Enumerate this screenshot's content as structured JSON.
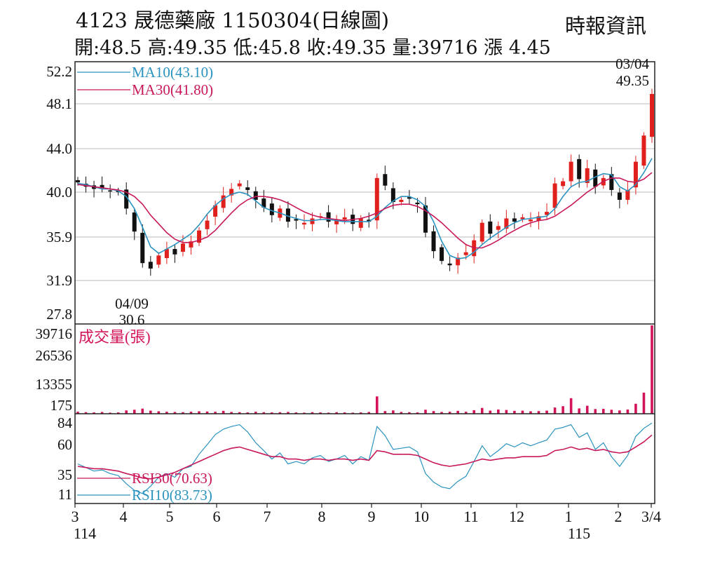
{
  "header": {
    "title": "4123  晟德藥廠 1150304(日線圖)",
    "source": "時報資訊",
    "quote": "開:48.5 高:49.35 低:45.8 收:49.35 量:39716 漲 4.45"
  },
  "colors": {
    "up": "#e0201c",
    "down": "#111111",
    "ma10": "#2a93c0",
    "ma30": "#c8185a",
    "volume": "#d4145a",
    "rsi30": "#c8185a",
    "rsi10": "#2a93c0",
    "grid": "#bbbbbb",
    "frame": "#222222"
  },
  "chart_data": [
    {
      "type": "candlestick",
      "panel": "price",
      "y_ticks": [
        "52.2",
        "48.1",
        "44.0",
        "40.0",
        "35.9",
        "31.9",
        "27.8"
      ],
      "ylim": [
        27.8,
        52.2
      ],
      "grid": true,
      "x_ticks": [
        "3",
        "4",
        "5",
        "6",
        "7",
        "8",
        "9",
        "10",
        "11",
        "12",
        "1",
        "2",
        "3/4"
      ],
      "x_year_labels": [
        "114",
        "115"
      ],
      "series": [
        {
          "name": "MA10(43.10)",
          "values": [
            40.8,
            40.7,
            40.5,
            40.3,
            40.3,
            40.1,
            39.6,
            38.5,
            36.8,
            35.0,
            34.4,
            34.8,
            35.2,
            35.7,
            36.2,
            37.0,
            38.0,
            38.8,
            39.4,
            39.8,
            40.0,
            39.8,
            39.2,
            38.6,
            38.3,
            38.1,
            37.8,
            37.6,
            37.4,
            37.4,
            37.5,
            37.5,
            37.4,
            37.3,
            37.3,
            37.3,
            37.3,
            37.8,
            38.6,
            39.2,
            39.6,
            39.6,
            39.3,
            38.7,
            37.3,
            35.5,
            34.2,
            33.9,
            34.0,
            34.5,
            35.2,
            35.8,
            36.3,
            36.8,
            37.2,
            37.5,
            37.6,
            37.7,
            37.8,
            38.5,
            39.6,
            40.5,
            40.9,
            41.0,
            41.4,
            41.7,
            41.6,
            40.5,
            40.1,
            40.7,
            41.8,
            43.1
          ]
        },
        {
          "name": "MA30(41.80)",
          "values": [
            40.7,
            40.6,
            40.5,
            40.4,
            40.3,
            40.2,
            40.0,
            39.6,
            38.9,
            37.9,
            37.1,
            36.3,
            35.7,
            35.4,
            35.4,
            35.6,
            35.9,
            36.5,
            37.3,
            38.1,
            38.8,
            39.3,
            39.6,
            39.6,
            39.5,
            39.3,
            39.0,
            38.6,
            38.2,
            37.9,
            37.7,
            37.6,
            37.5,
            37.4,
            37.5,
            37.6,
            37.8,
            38.1,
            38.5,
            38.8,
            38.9,
            38.9,
            38.7,
            38.3,
            37.8,
            37.2,
            36.5,
            35.8,
            35.2,
            34.9,
            34.9,
            35.2,
            35.6,
            36.1,
            36.5,
            36.9,
            37.2,
            37.4,
            37.5,
            37.8,
            38.3,
            38.8,
            39.4,
            40.0,
            40.5,
            41.0,
            41.3,
            41.3,
            41.0,
            40.9,
            41.2,
            41.8
          ]
        },
        {
          "name": "close",
          "values": [
            40.9,
            40.5,
            40.3,
            40.4,
            40.1,
            40.0,
            38.5,
            36.4,
            33.5,
            33.0,
            34.2,
            34.8,
            34.3,
            35.3,
            35.5,
            36.5,
            37.4,
            38.8,
            39.7,
            40.3,
            40.8,
            40.2,
            39.3,
            38.6,
            37.9,
            38.5,
            37.3,
            37.4,
            37.2,
            37.6,
            37.8,
            37.3,
            37.5,
            37.7,
            37.1,
            37.6,
            37.3,
            41.3,
            40.6,
            39.1,
            39.3,
            39.4,
            38.9,
            36.3,
            34.6,
            33.7,
            33.3,
            34.0,
            34.5,
            35.6,
            37.2,
            36.2,
            36.9,
            37.6,
            37.3,
            37.7,
            37.5,
            37.8,
            38.2,
            40.8,
            41.0,
            42.8,
            41.2,
            42.2,
            40.5,
            41.3,
            40.2,
            39.3,
            40.2,
            42.8,
            45.2,
            49.35
          ]
        }
      ]
    },
    {
      "type": "bar",
      "panel": "volume",
      "title": "成交量(張)",
      "y_ticks": [
        "39716",
        "26536",
        "13355",
        "175"
      ],
      "ylim": [
        0,
        39716
      ],
      "values": [
        900,
        700,
        600,
        800,
        500,
        600,
        1500,
        1800,
        2300,
        1400,
        1100,
        900,
        800,
        700,
        900,
        1100,
        1000,
        900,
        1300,
        800,
        700,
        600,
        900,
        700,
        600,
        700,
        800,
        600,
        500,
        700,
        600,
        500,
        700,
        600,
        500,
        600,
        800,
        7800,
        1200,
        1500,
        800,
        700,
        600,
        1800,
        1200,
        800,
        900,
        1300,
        900,
        1600,
        2600,
        1400,
        1900,
        1700,
        1300,
        1400,
        1100,
        1200,
        1400,
        2800,
        3400,
        7000,
        2400,
        3600,
        2100,
        2200,
        1800,
        1500,
        1900,
        4500,
        9500,
        39716
      ]
    },
    {
      "type": "line",
      "panel": "rsi",
      "y_ticks": [
        "84",
        "60",
        "35",
        "11"
      ],
      "ylim": [
        11,
        84
      ],
      "series": [
        {
          "name": "RSI30(70.63)",
          "values": [
            42,
            41,
            40,
            40,
            39,
            38,
            36,
            34,
            31,
            30,
            32,
            35,
            37,
            40,
            43,
            46,
            49,
            52,
            55,
            57,
            58,
            56,
            54,
            52,
            50,
            50,
            48,
            48,
            47,
            48,
            48,
            47,
            48,
            48,
            47,
            48,
            47,
            55,
            54,
            52,
            52,
            52,
            51,
            48,
            45,
            43,
            42,
            43,
            44,
            46,
            48,
            47,
            48,
            49,
            49,
            50,
            50,
            50,
            51,
            55,
            56,
            58,
            56,
            57,
            55,
            56,
            54,
            53,
            54,
            58,
            63,
            70.63
          ]
        },
        {
          "name": "RSI10(83.73)",
          "values": [
            44,
            41,
            38,
            39,
            36,
            34,
            24,
            16,
            12,
            21,
            32,
            36,
            32,
            40,
            42,
            52,
            60,
            71,
            77,
            80,
            82,
            74,
            62,
            55,
            48,
            53,
            44,
            46,
            44,
            49,
            51,
            46,
            48,
            51,
            44,
            50,
            47,
            80,
            70,
            56,
            57,
            58,
            54,
            36,
            26,
            20,
            18,
            27,
            33,
            46,
            59,
            50,
            55,
            61,
            58,
            62,
            59,
            62,
            65,
            77,
            79,
            82,
            68,
            73,
            56,
            62,
            50,
            42,
            51,
            69,
            78,
            83.73
          ]
        }
      ]
    }
  ],
  "annotations": {
    "low": {
      "date": "04/09",
      "value": "30.6"
    },
    "high": {
      "date": "03/04",
      "value": "49.35"
    }
  }
}
